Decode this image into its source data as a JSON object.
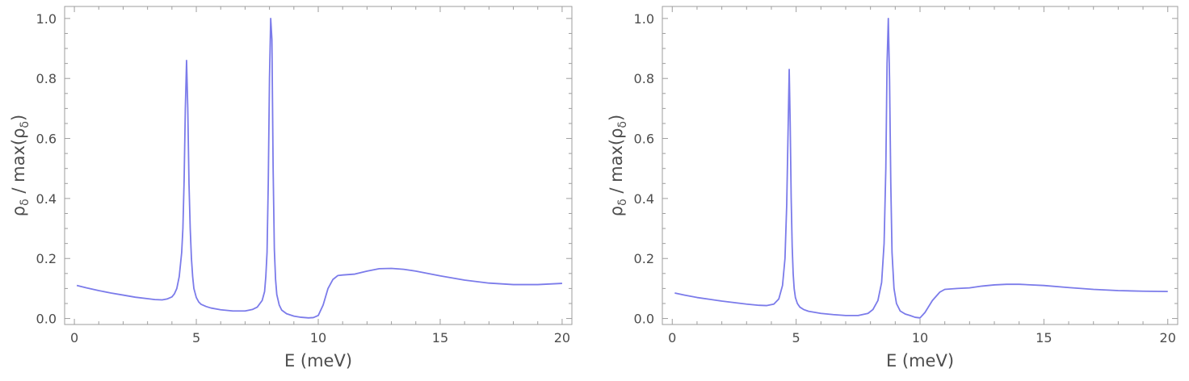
{
  "colors": {
    "series": "#7b7bea",
    "frame": "#9e9e9e",
    "text": "#4d4d4d"
  },
  "chart_data": [
    {
      "type": "line",
      "xlabel": "E (meV)",
      "ylabel": "ρδ / max(ρδ)",
      "ylabel_parts": {
        "rho": "ρ",
        "sub": "δ",
        "mid": " / max(",
        "end": ")"
      },
      "xlim": [
        -0.4,
        20.4
      ],
      "ylim": [
        -0.02,
        1.04
      ],
      "xticks": [
        0,
        5,
        10,
        15,
        20
      ],
      "xtick_labels": [
        "0",
        "5",
        "10",
        "15",
        "20"
      ],
      "yticks": [
        0.0,
        0.2,
        0.4,
        0.6,
        0.8,
        1.0
      ],
      "ytick_labels": [
        "0.0",
        "0.2",
        "0.4",
        "0.6",
        "0.8",
        "1.0"
      ],
      "grid": false,
      "series": [
        {
          "x": [
            0.1,
            0.5,
            1.0,
            1.5,
            2.0,
            2.5,
            3.0,
            3.3,
            3.6,
            3.8,
            4.0,
            4.1,
            4.2,
            4.3,
            4.4,
            4.45,
            4.5,
            4.55,
            4.6,
            4.65,
            4.7,
            4.75,
            4.8,
            4.85,
            4.9,
            5.0,
            5.1,
            5.2,
            5.4,
            5.6,
            6.0,
            6.5,
            7.0,
            7.3,
            7.5,
            7.7,
            7.8,
            7.85,
            7.9,
            7.95,
            8.0,
            8.05,
            8.1,
            8.15,
            8.2,
            8.25,
            8.3,
            8.4,
            8.5,
            8.7,
            9.0,
            9.3,
            9.6,
            9.8,
            10.0,
            10.2,
            10.4,
            10.6,
            10.8,
            11.0,
            11.5,
            12.0,
            12.5,
            13.0,
            13.5,
            14.0,
            15.0,
            16.0,
            17.0,
            18.0,
            19.0,
            20.0
          ],
          "y": [
            0.11,
            0.102,
            0.093,
            0.085,
            0.078,
            0.071,
            0.066,
            0.063,
            0.062,
            0.065,
            0.072,
            0.082,
            0.1,
            0.14,
            0.22,
            0.3,
            0.46,
            0.7,
            0.86,
            0.7,
            0.45,
            0.3,
            0.2,
            0.14,
            0.1,
            0.07,
            0.055,
            0.047,
            0.04,
            0.035,
            0.029,
            0.025,
            0.025,
            0.03,
            0.038,
            0.06,
            0.09,
            0.14,
            0.22,
            0.45,
            0.8,
            1.0,
            0.93,
            0.5,
            0.23,
            0.13,
            0.08,
            0.045,
            0.028,
            0.016,
            0.008,
            0.004,
            0.002,
            0.003,
            0.01,
            0.045,
            0.1,
            0.13,
            0.143,
            0.145,
            0.148,
            0.158,
            0.166,
            0.167,
            0.164,
            0.158,
            0.142,
            0.128,
            0.118,
            0.113,
            0.113,
            0.117
          ]
        }
      ]
    },
    {
      "type": "line",
      "xlabel": "E (meV)",
      "ylabel": "ρδ / max(ρδ)",
      "ylabel_parts": {
        "rho": "ρ",
        "sub": "δ",
        "mid": " / max(",
        "end": ")"
      },
      "xlim": [
        -0.4,
        20.4
      ],
      "ylim": [
        -0.02,
        1.04
      ],
      "xticks": [
        0,
        5,
        10,
        15,
        20
      ],
      "xtick_labels": [
        "0",
        "5",
        "10",
        "15",
        "20"
      ],
      "yticks": [
        0.0,
        0.2,
        0.4,
        0.6,
        0.8,
        1.0
      ],
      "ytick_labels": [
        "0.0",
        "0.2",
        "0.4",
        "0.6",
        "0.8",
        "1.0"
      ],
      "grid": false,
      "series": [
        {
          "x": [
            0.1,
            0.5,
            1.0,
            1.5,
            2.0,
            2.5,
            3.0,
            3.5,
            3.8,
            4.1,
            4.3,
            4.45,
            4.55,
            4.62,
            4.68,
            4.72,
            4.76,
            4.8,
            4.84,
            4.88,
            4.92,
            4.97,
            5.05,
            5.15,
            5.3,
            5.5,
            6.0,
            6.5,
            7.0,
            7.5,
            7.9,
            8.1,
            8.3,
            8.45,
            8.55,
            8.62,
            8.67,
            8.72,
            8.77,
            8.82,
            8.87,
            8.95,
            9.05,
            9.2,
            9.4,
            9.6,
            9.8,
            10.0,
            10.2,
            10.5,
            10.8,
            11.0,
            11.5,
            12.0,
            12.5,
            13.0,
            13.5,
            14.0,
            15.0,
            16.0,
            17.0,
            18.0,
            19.0,
            20.0
          ],
          "y": [
            0.085,
            0.078,
            0.07,
            0.064,
            0.058,
            0.053,
            0.048,
            0.044,
            0.043,
            0.048,
            0.065,
            0.11,
            0.2,
            0.38,
            0.65,
            0.83,
            0.65,
            0.4,
            0.24,
            0.15,
            0.1,
            0.07,
            0.05,
            0.038,
            0.03,
            0.024,
            0.017,
            0.013,
            0.01,
            0.01,
            0.017,
            0.03,
            0.06,
            0.12,
            0.25,
            0.5,
            0.85,
            1.0,
            0.8,
            0.45,
            0.22,
            0.1,
            0.05,
            0.025,
            0.015,
            0.01,
            0.004,
            0.002,
            0.02,
            0.06,
            0.088,
            0.097,
            0.1,
            0.102,
            0.108,
            0.112,
            0.114,
            0.114,
            0.11,
            0.103,
            0.097,
            0.093,
            0.091,
            0.09
          ]
        }
      ]
    }
  ]
}
